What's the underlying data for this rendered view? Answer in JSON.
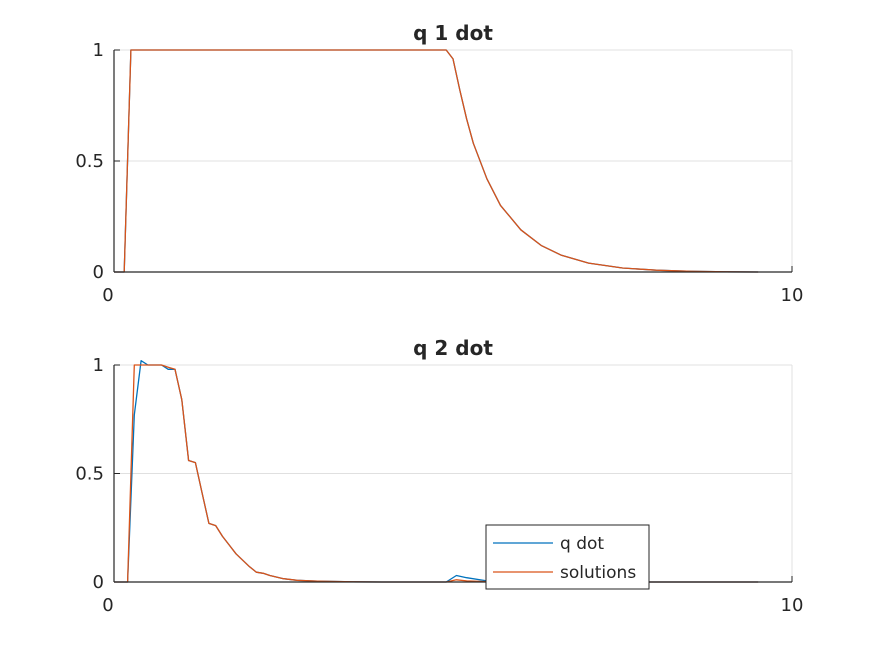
{
  "colors": {
    "series1": "#0072BD",
    "series2": "#D95319",
    "axis": "#262626",
    "grid": "#e0e0e0",
    "background": "#ffffff"
  },
  "chart_data": [
    {
      "type": "line",
      "title": "q 1 dot",
      "xlabel": "",
      "ylabel": "",
      "xlim": [
        0,
        10
      ],
      "ylim": [
        0,
        1
      ],
      "x_ticks": [
        "0",
        "10"
      ],
      "y_ticks": [
        "0",
        "0.5",
        "1"
      ],
      "grid": "horizontal",
      "legend": null,
      "series": [
        {
          "x": [
            0,
            0.15,
            0.25,
            0.4,
            1,
            2,
            3,
            4,
            4.9,
            5.0,
            5.1,
            5.2,
            5.3,
            5.5,
            5.7,
            6.0,
            6.3,
            6.6,
            7.0,
            7.5,
            8.0,
            8.5,
            9.0,
            9.5
          ],
          "y": [
            0,
            0,
            1,
            1,
            1,
            1,
            1,
            1,
            1,
            0.96,
            0.82,
            0.69,
            0.58,
            0.42,
            0.3,
            0.19,
            0.12,
            0.075,
            0.04,
            0.018,
            0.008,
            0.003,
            0.001,
            0
          ]
        },
        {
          "x": [
            0,
            0.15,
            0.25,
            0.4,
            1,
            2,
            3,
            4,
            4.9,
            5.0,
            5.1,
            5.2,
            5.3,
            5.5,
            5.7,
            6.0,
            6.3,
            6.6,
            7.0,
            7.5,
            8.0,
            8.5,
            9.0,
            9.5
          ],
          "y": [
            0,
            0,
            1,
            1,
            1,
            1,
            1,
            1,
            1,
            0.96,
            0.82,
            0.69,
            0.58,
            0.42,
            0.3,
            0.19,
            0.12,
            0.075,
            0.04,
            0.018,
            0.008,
            0.003,
            0.001,
            0
          ]
        }
      ]
    },
    {
      "type": "line",
      "title": "q 2 dot",
      "xlabel": "",
      "ylabel": "",
      "xlim": [
        0,
        10
      ],
      "ylim": [
        0,
        1
      ],
      "x_ticks": [
        "0",
        "10"
      ],
      "y_ticks": [
        "0",
        "0.5",
        "1"
      ],
      "grid": "horizontal",
      "legend": "bottom-right",
      "series": [
        {
          "name": "q dot",
          "x": [
            0,
            0.2,
            0.3,
            0.4,
            0.5,
            0.6,
            0.7,
            0.8,
            0.9,
            1.0,
            1.1,
            1.2,
            1.3,
            1.4,
            1.5,
            1.6,
            1.7,
            1.8,
            1.9,
            2.0,
            2.1,
            2.2,
            2.3,
            2.5,
            2.7,
            3.0,
            3.5,
            4.0,
            4.5,
            4.9,
            5.05,
            5.2,
            5.5,
            6.0,
            7.0,
            8.0,
            9.0,
            9.5
          ],
          "y": [
            0,
            0,
            0.77,
            1.02,
            1.0,
            1.0,
            1.0,
            0.98,
            0.98,
            0.84,
            0.56,
            0.55,
            0.41,
            0.27,
            0.26,
            0.21,
            0.17,
            0.13,
            0.1,
            0.07,
            0.045,
            0.04,
            0.03,
            0.015,
            0.008,
            0.004,
            0.001,
            0,
            0,
            0,
            0.03,
            0.02,
            0.005,
            0.002,
            0,
            0,
            0,
            0
          ]
        },
        {
          "name": "solutions",
          "x": [
            0,
            0.2,
            0.3,
            0.4,
            0.5,
            0.6,
            0.7,
            0.8,
            0.9,
            1.0,
            1.1,
            1.2,
            1.3,
            1.4,
            1.5,
            1.6,
            1.7,
            1.8,
            1.9,
            2.0,
            2.1,
            2.2,
            2.3,
            2.5,
            2.7,
            3.0,
            3.5,
            4.0,
            4.5,
            4.9,
            5.05,
            5.2,
            5.5,
            6.0,
            7.0,
            8.0,
            9.0,
            9.5
          ],
          "y": [
            0,
            0,
            1.0,
            1.0,
            1.0,
            1.0,
            1.0,
            0.99,
            0.98,
            0.84,
            0.56,
            0.55,
            0.41,
            0.27,
            0.26,
            0.21,
            0.17,
            0.13,
            0.1,
            0.07,
            0.045,
            0.04,
            0.03,
            0.015,
            0.008,
            0.004,
            0.001,
            0,
            0,
            0,
            0.01,
            0.005,
            0.002,
            0.001,
            0,
            0,
            0,
            0
          ]
        }
      ]
    }
  ]
}
